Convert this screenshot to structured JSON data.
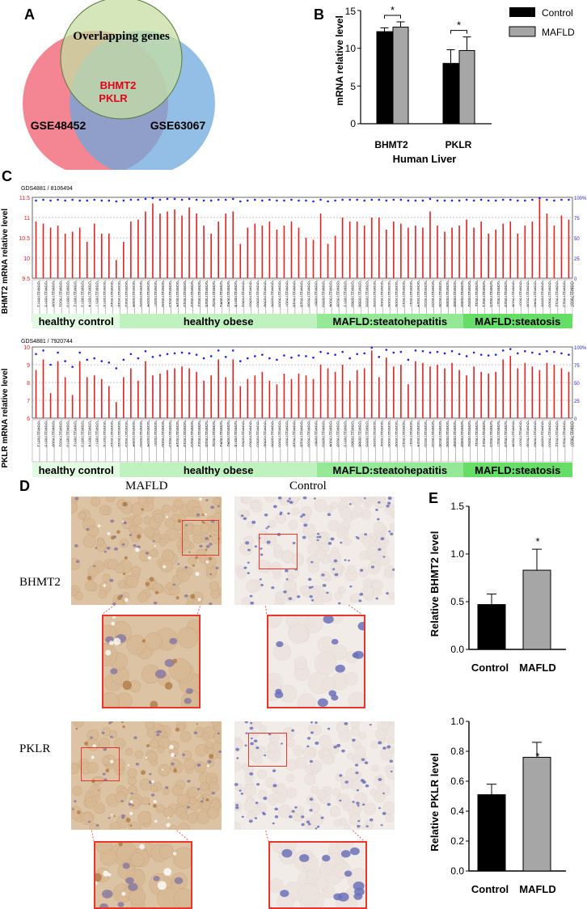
{
  "panels": {
    "A": "A",
    "B": "B",
    "C": "C",
    "D": "D",
    "E": "E"
  },
  "venn": {
    "top_label": "Overlapping genes",
    "left_label": "GSE48452",
    "right_label": "GSE63067",
    "center_genes": [
      "BHMT2",
      "PKLR"
    ],
    "colors": {
      "top": "#c5dda3",
      "left": "#f2707f",
      "right": "#6fa8dc",
      "center_text": "#e3001b"
    }
  },
  "chart_b": {
    "type": "bar",
    "categories": [
      "BHMT2",
      "PKLR"
    ],
    "series": [
      {
        "name": "Control",
        "values": [
          12.2,
          8.0
        ],
        "errors": [
          0.5,
          1.8
        ],
        "color": "#000000"
      },
      {
        "name": "MAFLD",
        "values": [
          12.8,
          9.7
        ],
        "errors": [
          0.7,
          1.8
        ],
        "color": "#a6a6a6"
      }
    ],
    "ylabel": "mRNA relative  level",
    "xlabel": "Human Liver",
    "ylim": [
      0,
      15
    ],
    "yticks": [
      "0",
      "5",
      "10",
      "15"
    ],
    "significance": [
      "*",
      "*"
    ],
    "legend_placement": "top-right"
  },
  "panel_c": {
    "bhmt2": {
      "header": "GDS4881 / 8106494",
      "ylabel": "BHMT2 mRNA relative level",
      "left_ticks": [
        "11.5",
        "11",
        "10.5",
        "10",
        "9.5"
      ],
      "right_ticks": [
        "100%",
        "75",
        "50",
        "25",
        "0"
      ],
      "ylim": [
        9.5,
        11.5
      ],
      "values": [
        10.9,
        10.85,
        10.75,
        10.8,
        10.6,
        10.65,
        10.75,
        10.4,
        10.85,
        10.6,
        10.6,
        9.95,
        10.4,
        10.9,
        10.95,
        11.15,
        11.35,
        11.1,
        11.15,
        11.2,
        11.05,
        11.25,
        11.1,
        10.8,
        10.6,
        10.9,
        11.1,
        11.15,
        10.35,
        10.75,
        10.85,
        10.8,
        10.9,
        10.7,
        10.8,
        10.9,
        10.75,
        10.5,
        10.45,
        11.1,
        10.35,
        10.55,
        11.0,
        10.9,
        10.9,
        10.8,
        11.0,
        11.0,
        10.7,
        10.9,
        10.85,
        10.75,
        10.8,
        10.75,
        11.15,
        10.8,
        10.65,
        10.75,
        10.8,
        10.95,
        10.75,
        10.9,
        10.6,
        10.7,
        10.85,
        10.9,
        10.6,
        10.8,
        10.9,
        11.45,
        11.1,
        10.8,
        11.05,
        10.95
      ],
      "pct": [
        96,
        97,
        96,
        97,
        96,
        97,
        96,
        96,
        97,
        96,
        96,
        95,
        96,
        97,
        97,
        98,
        99,
        97,
        98,
        98,
        97,
        98,
        97,
        96,
        96,
        97,
        97,
        98,
        95,
        96,
        97,
        96,
        97,
        96,
        96,
        97,
        96,
        96,
        95,
        97,
        95,
        96,
        97,
        97,
        97,
        96,
        97,
        97,
        96,
        97,
        97,
        96,
        96,
        96,
        98,
        96,
        96,
        96,
        96,
        97,
        96,
        97,
        96,
        96,
        97,
        97,
        96,
        96,
        97,
        99,
        97,
        96,
        97,
        97
      ],
      "samples": [
        "GSM1178971",
        "GSM1178979",
        "GSM1179009",
        "GSM1179031",
        "GSM1178970",
        "GSM1178972",
        "GSM1178973",
        "GSM1178974",
        "GSM1178977",
        "GSM1178978",
        "GSM1179010",
        "GSM1179018",
        "GSM1179020",
        "GSM1178984",
        "GSM1178990",
        "GSM1178994",
        "GSM1178997",
        "GSM1179000",
        "GSM1179013",
        "GSM1179014",
        "GSM1179019",
        "GSM1179020",
        "GSM1179022",
        "GSM1179028",
        "GSM1179032",
        "GSM1179041",
        "GSM1179042",
        "GSM1178976",
        "GSM1178981",
        "GSM1178983",
        "GSM1178985",
        "GSM1178988",
        "GSM1178996",
        "GSM1179005",
        "GSM1179007",
        "GSM1179016",
        "GSM1179026",
        "GSM1179030",
        "GSM1178987",
        "GSM1178993",
        "GSM1179004",
        "GSM1179039",
        "GSM1178975",
        "GSM1178980",
        "GSM1178986",
        "GSM1178995",
        "GSM1178998",
        "GSM1179002",
        "GSM1179006",
        "GSM1179008",
        "GSM1179015",
        "GSM1179017",
        "GSM1179024",
        "GSM1179033",
        "GSM1179035",
        "GSM1179036",
        "GSM1178986",
        "GSM1178988",
        "GSM1178989",
        "GSM1178992",
        "GSM1179011",
        "GSM1179021",
        "GSM1179025",
        "GSM1179027",
        "GSM1179029",
        "GSM1179034",
        "GSM1179037",
        "GSM1179038",
        "GSM1179040",
        "GSM1178999",
        "GSM1179003",
        "GSM1179012",
        "GSM1179023",
        "GSM1179037"
      ]
    },
    "pklr": {
      "header": "GDS4881 / 7920744",
      "ylabel": "PKLR mRNA relative level",
      "left_ticks": [
        "10",
        "9",
        "8",
        "7",
        "6"
      ],
      "right_ticks": [
        "100%",
        "75",
        "50",
        "25",
        "0"
      ],
      "ylim": [
        6,
        10
      ],
      "values": [
        8.7,
        9.3,
        7.4,
        9.2,
        8.3,
        7.3,
        9.2,
        8.3,
        8.4,
        8.2,
        7.8,
        6.9,
        8.3,
        8.8,
        8.1,
        9.2,
        8.4,
        8.5,
        8.7,
        8.8,
        8.9,
        8.8,
        8.6,
        8.1,
        8.4,
        9.3,
        8.3,
        9.3,
        7.8,
        8.2,
        8.4,
        8.6,
        8.1,
        7.9,
        8.5,
        8.2,
        8.5,
        8.4,
        8.2,
        9.0,
        8.8,
        8.6,
        9.0,
        8.1,
        8.7,
        8.8,
        9.8,
        8.3,
        9.4,
        8.9,
        9.0,
        7.9,
        9.2,
        9.1,
        8.9,
        9.0,
        8.8,
        9.1,
        8.7,
        8.4,
        8.9,
        8.6,
        8.5,
        8.6,
        9.3,
        9.5,
        8.8,
        9.1,
        8.9,
        8.7,
        9.1,
        9.0,
        8.8,
        8.6
      ],
      "pct": [
        90,
        95,
        75,
        92,
        80,
        72,
        92,
        82,
        84,
        80,
        78,
        70,
        82,
        90,
        84,
        94,
        86,
        88,
        90,
        91,
        92,
        91,
        89,
        84,
        87,
        95,
        86,
        95,
        80,
        84,
        87,
        89,
        84,
        82,
        88,
        85,
        88,
        87,
        85,
        93,
        91,
        89,
        93,
        84,
        90,
        91,
        99,
        86,
        96,
        92,
        93,
        82,
        95,
        94,
        92,
        93,
        91,
        94,
        90,
        87,
        92,
        89,
        88,
        89,
        95,
        97,
        91,
        94,
        92,
        90,
        94,
        93,
        91,
        89
      ]
    },
    "groups": [
      {
        "label": "healthy control",
        "count": 12,
        "color": "#e2f9e2"
      },
      {
        "label": "healthy obese",
        "count": 27,
        "color": "#c0f2c0"
      },
      {
        "label": "MAFLD:steatohepatitis",
        "count": 20,
        "color": "#95e895"
      },
      {
        "label": "MAFLD:steatosis",
        "count": 15,
        "color": "#66dd66"
      }
    ]
  },
  "panel_d": {
    "col_left": "MAFLD",
    "col_right": "Control",
    "row_top": "BHMT2",
    "row_bottom": "PKLR",
    "colors": {
      "mafld_tissue": "#dcc3a4",
      "control_tissue": "#f2ece8",
      "nuclei_blue": "#6b72b8",
      "stain_brown": "#b07a45",
      "zoom_box": "#e8372a"
    }
  },
  "chart_e1": {
    "type": "bar",
    "categories": [
      "Control",
      "MAFLD"
    ],
    "values": [
      0.47,
      0.83
    ],
    "errors": [
      0.11,
      0.22
    ],
    "colors": [
      "#000000",
      "#a6a6a6"
    ],
    "ylabel": "Relative BHMT2 level",
    "ylim": [
      0,
      1.5
    ],
    "yticks": [
      "0.0",
      "0.5",
      "1.0",
      "1.5"
    ],
    "significance": "*"
  },
  "chart_e2": {
    "type": "bar",
    "categories": [
      "Control",
      "MAFLD"
    ],
    "values": [
      0.51,
      0.76
    ],
    "errors": [
      0.07,
      0.1
    ],
    "colors": [
      "#000000",
      "#a6a6a6"
    ],
    "ylabel": "Relative PKLR level",
    "ylim": [
      0,
      1.0
    ],
    "yticks": [
      "0.0",
      "0.2",
      "0.4",
      "0.6",
      "0.8",
      "1.0"
    ],
    "significance": "*"
  }
}
